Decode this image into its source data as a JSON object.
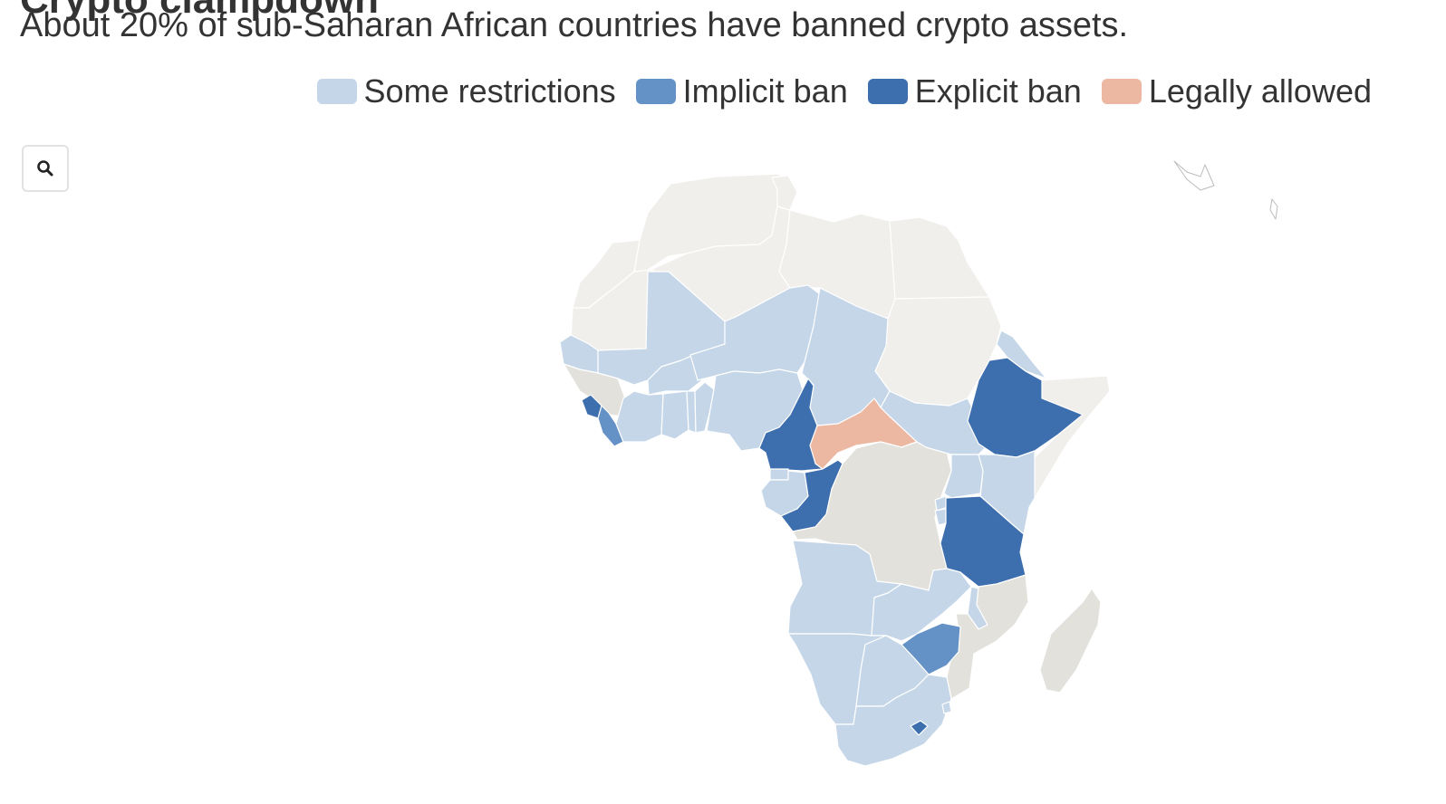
{
  "header": {
    "title": "Crypto clampdown",
    "subtitle": "About 20% of sub-Saharan African countries have banned crypto assets."
  },
  "legend": [
    {
      "label": "Some restrictions",
      "color": "#c4d6e8"
    },
    {
      "label": "Implicit ban",
      "color": "#6592c6"
    },
    {
      "label": "Explicit ban",
      "color": "#3d6eae"
    },
    {
      "label": "Legally allowed",
      "color": "#ecb8a2"
    }
  ],
  "colors": {
    "no_data_north": "#f0efec",
    "no_data": "#e2e1dc",
    "some_restrictions": "#c4d6e8",
    "implicit_ban": "#6592c6",
    "explicit_ban": "#3d6eae",
    "legally_allowed": "#ecb8a2"
  },
  "controls": {
    "zoom_icon": "search-icon"
  },
  "map_data": {
    "type": "choropleth",
    "region": "Africa",
    "regions": [
      {
        "name": "Morocco",
        "status": "no_data_north"
      },
      {
        "name": "Western Sahara",
        "status": "no_data_north"
      },
      {
        "name": "Algeria",
        "status": "no_data_north"
      },
      {
        "name": "Tunisia",
        "status": "no_data_north"
      },
      {
        "name": "Libya",
        "status": "no_data_north"
      },
      {
        "name": "Egypt",
        "status": "no_data_north"
      },
      {
        "name": "Sudan",
        "status": "no_data_north"
      },
      {
        "name": "Somalia",
        "status": "no_data_north"
      },
      {
        "name": "Mauritania",
        "status": "no_data_north"
      },
      {
        "name": "Senegal",
        "status": "some_restrictions"
      },
      {
        "name": "Guinea",
        "status": "no_data"
      },
      {
        "name": "Sierra Leone",
        "status": "explicit_ban"
      },
      {
        "name": "Liberia",
        "status": "implicit_ban"
      },
      {
        "name": "Mali",
        "status": "some_restrictions"
      },
      {
        "name": "Burkina Faso",
        "status": "some_restrictions"
      },
      {
        "name": "Cote d'Ivoire",
        "status": "some_restrictions"
      },
      {
        "name": "Ghana",
        "status": "some_restrictions"
      },
      {
        "name": "Togo",
        "status": "some_restrictions"
      },
      {
        "name": "Benin",
        "status": "some_restrictions"
      },
      {
        "name": "Niger",
        "status": "some_restrictions"
      },
      {
        "name": "Nigeria",
        "status": "some_restrictions"
      },
      {
        "name": "Chad",
        "status": "some_restrictions"
      },
      {
        "name": "Cameroon",
        "status": "explicit_ban"
      },
      {
        "name": "Central African Republic",
        "status": "legally_allowed"
      },
      {
        "name": "Equatorial Guinea",
        "status": "some_restrictions"
      },
      {
        "name": "Gabon",
        "status": "some_restrictions"
      },
      {
        "name": "Republic of the Congo",
        "status": "explicit_ban"
      },
      {
        "name": "Democratic Republic of the Congo",
        "status": "no_data"
      },
      {
        "name": "South Sudan",
        "status": "some_restrictions"
      },
      {
        "name": "Eritrea",
        "status": "some_restrictions"
      },
      {
        "name": "Ethiopia",
        "status": "explicit_ban"
      },
      {
        "name": "Uganda",
        "status": "some_restrictions"
      },
      {
        "name": "Kenya",
        "status": "some_restrictions"
      },
      {
        "name": "Rwanda",
        "status": "some_restrictions"
      },
      {
        "name": "Burundi",
        "status": "some_restrictions"
      },
      {
        "name": "Tanzania",
        "status": "explicit_ban"
      },
      {
        "name": "Angola",
        "status": "some_restrictions"
      },
      {
        "name": "Zambia",
        "status": "some_restrictions"
      },
      {
        "name": "Malawi",
        "status": "some_restrictions"
      },
      {
        "name": "Mozambique",
        "status": "no_data"
      },
      {
        "name": "Zimbabwe",
        "status": "implicit_ban"
      },
      {
        "name": "Namibia",
        "status": "some_restrictions"
      },
      {
        "name": "Botswana",
        "status": "some_restrictions"
      },
      {
        "name": "South Africa",
        "status": "some_restrictions"
      },
      {
        "name": "Lesotho",
        "status": "explicit_ban"
      },
      {
        "name": "Eswatini",
        "status": "some_restrictions"
      },
      {
        "name": "Madagascar",
        "status": "no_data"
      }
    ]
  }
}
